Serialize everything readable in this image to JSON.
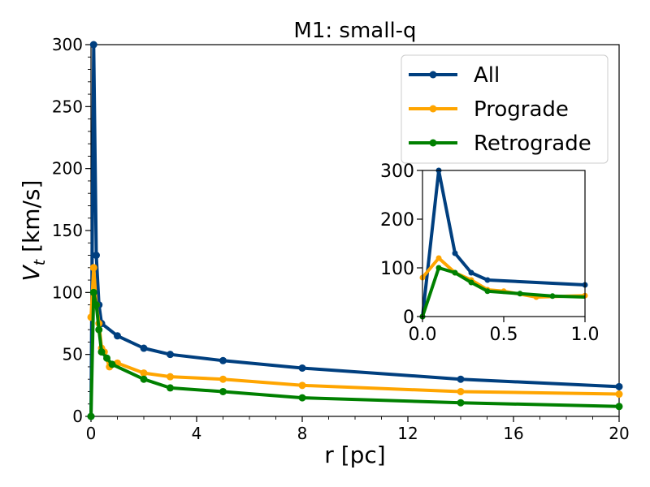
{
  "chart_data": [
    {
      "type": "line",
      "title": "M1: small-q",
      "xlabel": "r [pc]",
      "ylabel_main": "V",
      "ylabel_sub": "t",
      "ylabel_unit": " [km/s]",
      "xlim": [
        0,
        20
      ],
      "ylim": [
        0,
        300
      ],
      "xticks": [
        0,
        4,
        8,
        12,
        16,
        20
      ],
      "yticks": [
        0,
        50,
        100,
        150,
        200,
        250,
        300
      ],
      "grid": false,
      "legend_position": "upper right",
      "series": [
        {
          "name": "All",
          "color": "#003f7f",
          "x": [
            0,
            0.1,
            0.2,
            0.3,
            0.4,
            1,
            2,
            3,
            5,
            8,
            14,
            20
          ],
          "y": [
            0,
            300,
            130,
            90,
            75,
            65,
            55,
            50,
            45,
            39,
            30,
            24
          ]
        },
        {
          "name": "Prograde",
          "color": "#ffa500",
          "x": [
            0,
            0.1,
            0.2,
            0.3,
            0.4,
            0.5,
            0.7,
            1,
            2,
            3,
            5,
            8,
            14,
            20
          ],
          "y": [
            80,
            120,
            90,
            75,
            55,
            52,
            40,
            43,
            35,
            32,
            30,
            25,
            20,
            18
          ]
        },
        {
          "name": "Retrograde",
          "color": "#008000",
          "x": [
            0,
            0.1,
            0.2,
            0.3,
            0.4,
            0.6,
            0.8,
            2,
            3,
            5,
            8,
            14,
            20
          ],
          "y": [
            0,
            100,
            90,
            70,
            52,
            47,
            42,
            30,
            23,
            20,
            15,
            11,
            8
          ]
        }
      ]
    },
    {
      "type": "line",
      "role": "inset",
      "xlim": [
        0,
        1
      ],
      "ylim": [
        0,
        300
      ],
      "xticks": [
        "0.0",
        "0.5",
        "1.0"
      ],
      "yticks": [
        0,
        100,
        200,
        300
      ],
      "series_ref": "main"
    }
  ]
}
